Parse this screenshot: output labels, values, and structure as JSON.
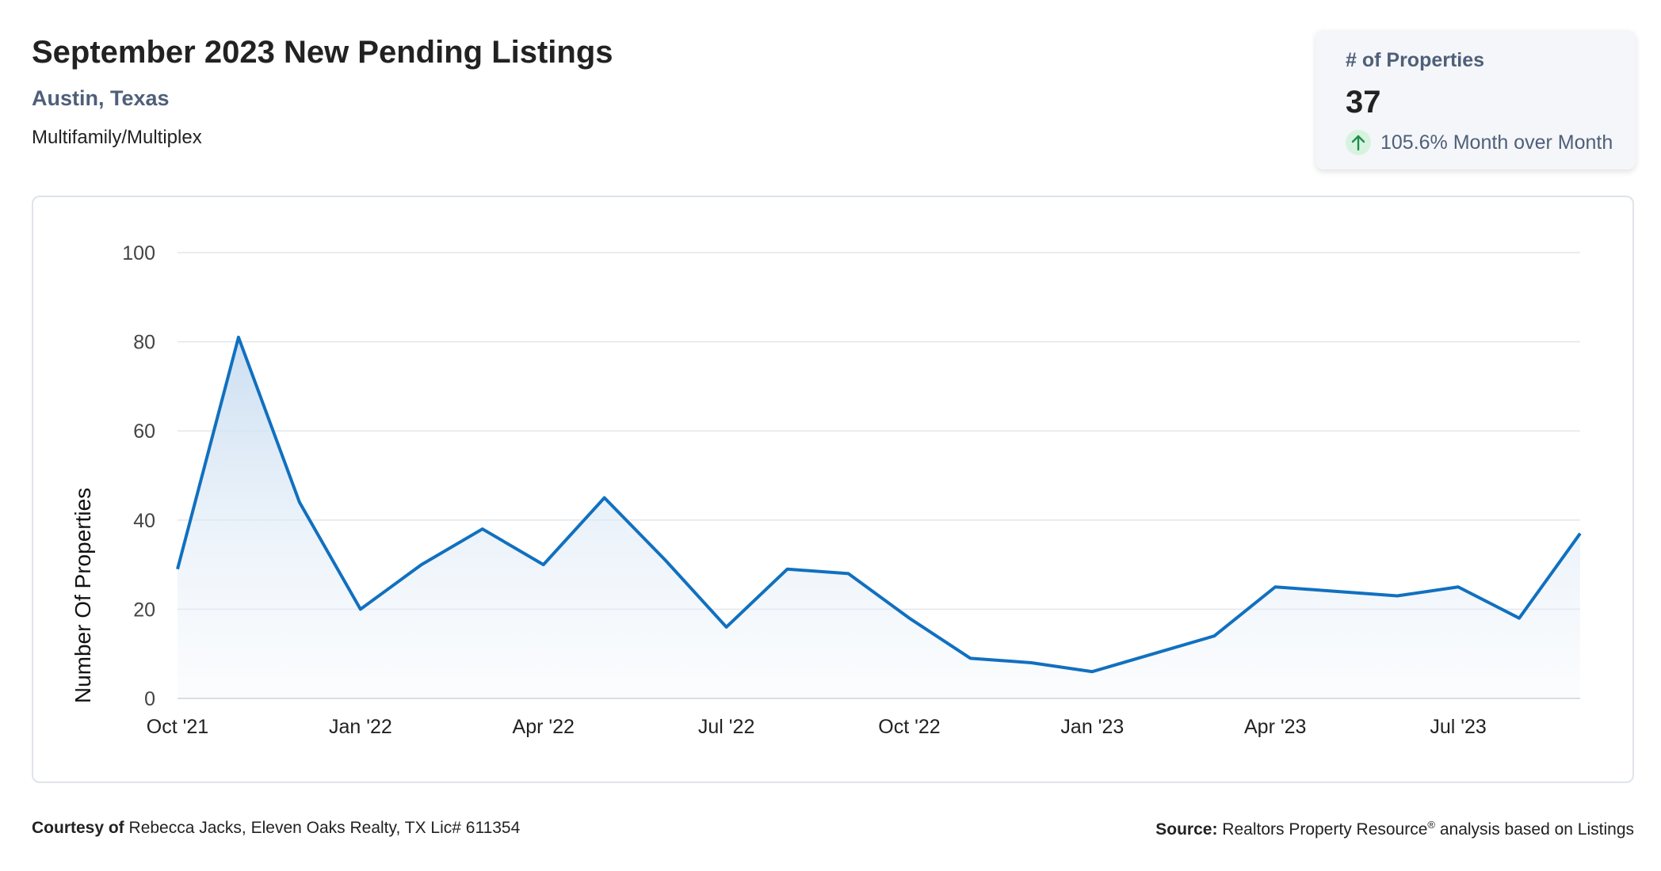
{
  "header": {
    "title": "September 2023 New Pending Listings",
    "location": "Austin, Texas",
    "category": "Multifamily/Multiplex"
  },
  "kpi": {
    "label": "# of Properties",
    "value": "37",
    "change": "105.6% Month over Month",
    "direction_icon": "arrow-up-icon",
    "positive_color": "#1e8f4e"
  },
  "footer": {
    "courtesy_label": "Courtesy of",
    "courtesy_text": "Rebecca Jacks, Eleven Oaks Realty, TX Lic# 611354",
    "source_label": "Source:",
    "source_name": "Realtors Property Resource",
    "source_mark": "®",
    "source_text": "analysis based on Listings"
  },
  "chart_data": {
    "type": "area",
    "x": [
      "Oct '21",
      "Nov '21",
      "Dec '21",
      "Jan '22",
      "Feb '22",
      "Mar '22",
      "Apr '22",
      "May '22",
      "Jun '22",
      "Jul '22",
      "Aug '22",
      "Sep '22",
      "Oct '22",
      "Nov '22",
      "Dec '22",
      "Jan '23",
      "Feb '23",
      "Mar '23",
      "Apr '23",
      "May '23",
      "Jun '23",
      "Jul '23",
      "Aug '23",
      "Sep '23"
    ],
    "values": [
      29,
      81,
      44,
      20,
      30,
      38,
      30,
      45,
      31,
      16,
      29,
      28,
      18,
      9,
      8,
      6,
      10,
      14,
      25,
      24,
      23,
      25,
      18,
      37
    ],
    "x_tick_labels": [
      "Oct '21",
      "Jan '22",
      "Apr '22",
      "Jul '22",
      "Oct '22",
      "Jan '23",
      "Apr '23",
      "Jul '23"
    ],
    "x_tick_indices": [
      0,
      3,
      6,
      9,
      12,
      15,
      18,
      21
    ],
    "y_ticks": [
      0,
      20,
      40,
      60,
      80,
      100
    ],
    "ylim": [
      0,
      100
    ],
    "ylabel": "Number Of Properties",
    "xlabel": "",
    "grid": true,
    "line_color": "#1170bf",
    "fill_color": "#cfe2f3"
  }
}
